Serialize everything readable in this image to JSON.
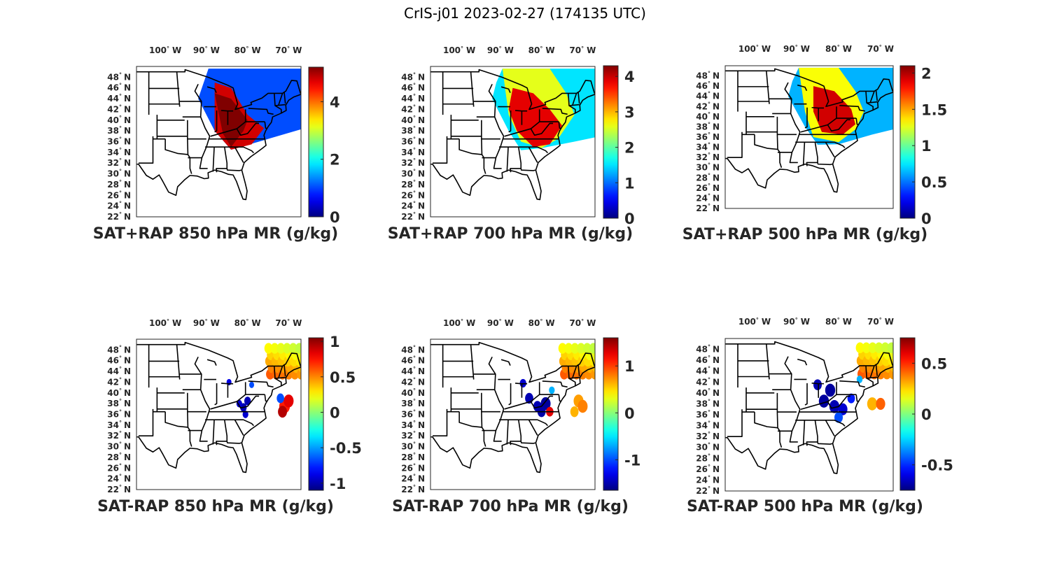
{
  "figure": {
    "title": "CrIS-j01 2023-02-27 (174135 UTC)"
  },
  "lon_labels": [
    "100",
    "90",
    "80",
    "70"
  ],
  "lon_ticks_deg": [
    -100,
    -90,
    -80,
    -70
  ],
  "lon_hemisphere": "W",
  "lat_labels": [
    "48",
    "46",
    "44",
    "42",
    "40",
    "38",
    "36",
    "34",
    "32",
    "30",
    "28",
    "26",
    "24",
    "22"
  ],
  "lat_ticks_deg": [
    48,
    46,
    44,
    42,
    40,
    38,
    36,
    34,
    32,
    30,
    28,
    26,
    24,
    22
  ],
  "lat_hemisphere": "N",
  "degree_symbol": "°",
  "map_extent": {
    "lon": [
      -107,
      -67
    ],
    "lat": [
      22,
      50
    ]
  },
  "colormap": "jet",
  "panels": [
    {
      "title": "SAT+RAP 850 hPa MR (g/kg)",
      "field": "total",
      "colorbar": {
        "min": 0,
        "max": 5.2,
        "ticks": [
          0,
          2,
          4
        ],
        "tick_labels": [
          "0",
          "2",
          "4"
        ]
      }
    },
    {
      "title": "SAT+RAP 700 hPa MR (g/kg)",
      "field": "total",
      "colorbar": {
        "min": 0,
        "max": 4.3,
        "ticks": [
          0,
          1,
          2,
          3,
          4
        ],
        "tick_labels": [
          "0",
          "1",
          "2",
          "3",
          "4"
        ]
      }
    },
    {
      "title": "SAT+RAP 500 hPa MR (g/kg)",
      "field": "total",
      "colorbar": {
        "min": 0,
        "max": 2.1,
        "ticks": [
          0,
          0.5,
          1,
          1.5,
          2
        ],
        "tick_labels": [
          "0",
          "0.5",
          "1",
          "1.5",
          "2"
        ]
      }
    },
    {
      "title": "SAT-RAP 850 hPa MR (g/kg)",
      "field": "difference",
      "colorbar": {
        "min": -1.1,
        "max": 1.05,
        "ticks": [
          -1,
          -0.5,
          0,
          0.5,
          1
        ],
        "tick_labels": [
          "-1",
          "-0.5",
          "0",
          "0.5",
          "1"
        ]
      }
    },
    {
      "title": "SAT-RAP 700 hPa MR (g/kg)",
      "field": "difference",
      "colorbar": {
        "min": -1.65,
        "max": 1.6,
        "ticks": [
          -1,
          0,
          1
        ],
        "tick_labels": [
          "-1",
          "0",
          "1"
        ]
      }
    },
    {
      "title": "SAT-RAP 500 hPa MR (g/kg)",
      "field": "difference",
      "colorbar": {
        "min": -0.75,
        "max": 0.75,
        "ticks": [
          -0.5,
          0,
          0.5
        ],
        "tick_labels": [
          "-0.5",
          "0",
          "0.5"
        ]
      }
    }
  ]
}
